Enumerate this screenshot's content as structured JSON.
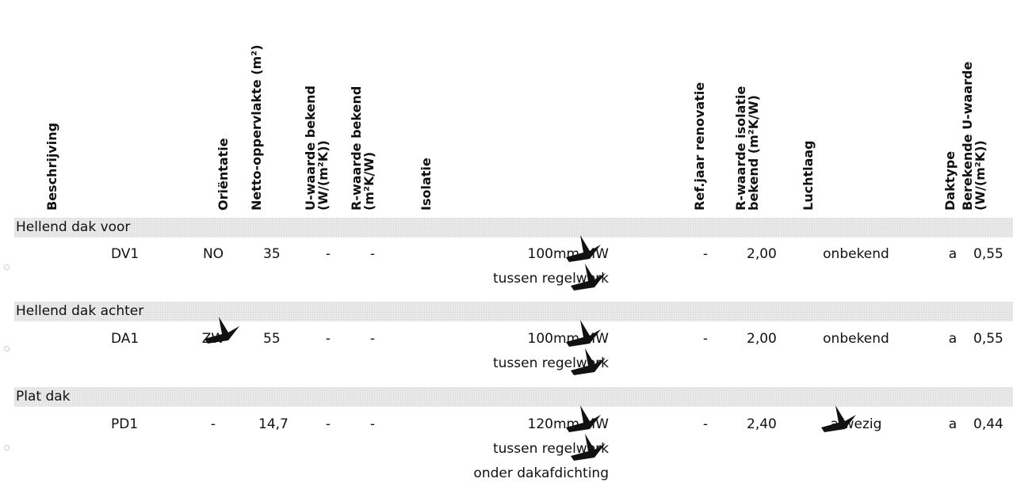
{
  "headers": {
    "beschrijving": "Beschrijving",
    "orientatie": "Oriëntatie",
    "netto": "Netto-oppervlakte (m²)",
    "u_bekend_1": "U-waarde bekend",
    "u_bekend_2": "(W/(m²K))",
    "r_bekend_1": "R-waarde bekend",
    "r_bekend_2": "(m²K/W)",
    "isolatie": "Isolatie",
    "ref_jaar": "Ref.jaar renovatie",
    "r_iso_1": "R-waarde isolatie",
    "r_iso_2": "bekend (m²K/W)",
    "luchtlaag": "Luchtlaag",
    "daktype": "Daktype",
    "ber_u_1": "Berekende U-waarde",
    "ber_u_2": "(W/(m²K))"
  },
  "groups": [
    {
      "title": "Hellend dak voor",
      "row": {
        "beschrijving": "DV1",
        "orientatie": "NO",
        "netto": "35",
        "u_bekend": "-",
        "r_bekend": "-",
        "isolatie": [
          "100mm MW",
          "tussen regelwerk"
        ],
        "ref_jaar": "-",
        "r_iso": "2,00",
        "luchtlaag": "onbekend",
        "daktype": "a",
        "ber_u": "0,55"
      }
    },
    {
      "title": "Hellend dak achter",
      "row": {
        "beschrijving": "DA1",
        "orientatie": "ZW",
        "netto": "55",
        "u_bekend": "-",
        "r_bekend": "-",
        "isolatie": [
          "100mm MW",
          "tussen regelwerk"
        ],
        "ref_jaar": "-",
        "r_iso": "2,00",
        "luchtlaag": "onbekend",
        "daktype": "a",
        "ber_u": "0,55"
      }
    },
    {
      "title": "Plat dak",
      "row": {
        "beschrijving": "PD1",
        "orientatie": "-",
        "netto": "14,7",
        "u_bekend": "-",
        "r_bekend": "-",
        "isolatie": [
          "120mm MW",
          "tussen regelwerk",
          "onder dakafdichting"
        ],
        "ref_jaar": "-",
        "r_iso": "2,40",
        "luchtlaag": "afwezig",
        "daktype": "a",
        "ber_u": "0,44"
      }
    }
  ],
  "colors": {
    "group_band": "#e9e9e9",
    "text": "#111111",
    "mark": "#111111"
  }
}
